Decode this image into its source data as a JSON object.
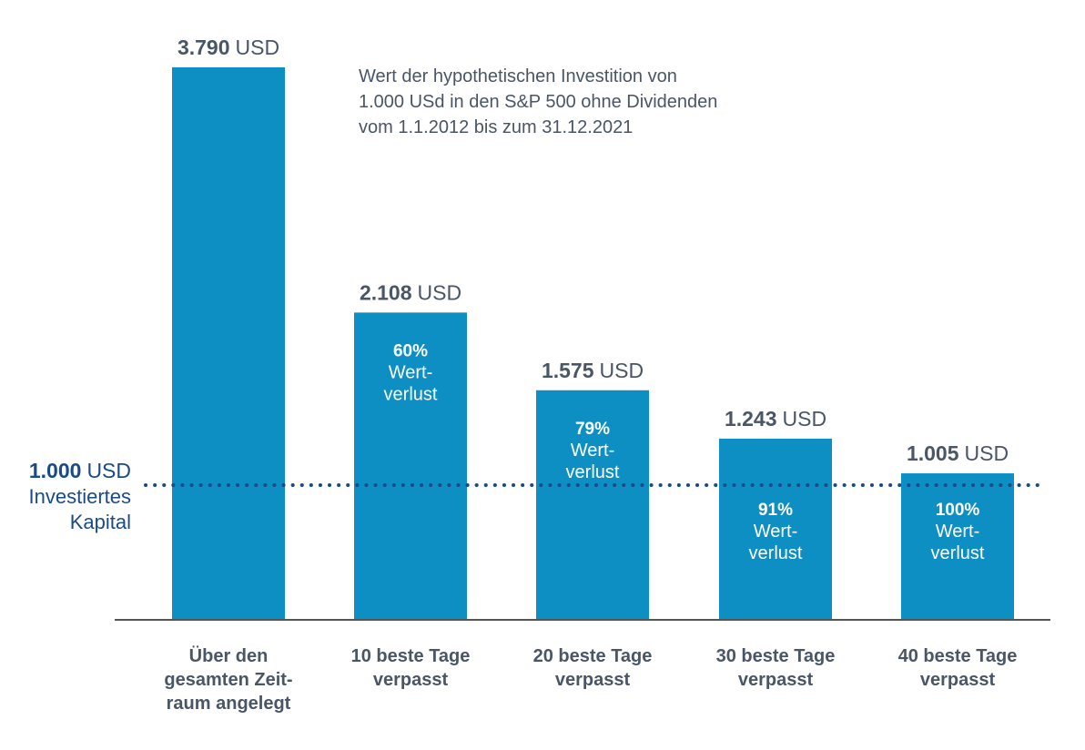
{
  "chart_data": {
    "type": "bar",
    "subtitle_lines": [
      "Wert der hypothetischen Investition von",
      "1.000 USd in den S&P 500 ohne Dividenden",
      "vom 1.1.2012 bis zum 31.12.2021"
    ],
    "unit": "USD",
    "categories": [
      [
        "Über den",
        "gesamten Zeit-",
        "raum angelegt"
      ],
      [
        "10 beste Tage",
        "verpasst"
      ],
      [
        "20 beste Tage",
        "verpasst"
      ],
      [
        "30 beste Tage",
        "verpasst"
      ],
      [
        "40 beste Tage",
        "verpasst"
      ]
    ],
    "values": [
      3790,
      2108,
      1575,
      1243,
      1005
    ],
    "value_labels": [
      "3.790",
      "2.108",
      "1.575",
      "1.243",
      "1.005"
    ],
    "loss_labels": [
      null,
      {
        "percent": "60%",
        "text": [
          "Wert-",
          "verlust"
        ]
      },
      {
        "percent": "79%",
        "text": [
          "Wert-",
          "verlust"
        ]
      },
      {
        "percent": "91%",
        "text": [
          "Wert-",
          "verlust"
        ]
      },
      {
        "percent": "100%",
        "text": [
          "Wert-",
          "verlust"
        ]
      }
    ],
    "reference_line": {
      "value": 1000,
      "value_label": "1.000",
      "unit": "USD",
      "label_lines": [
        "Investiertes",
        "Kapital"
      ]
    },
    "ylim": [
      0,
      3790
    ],
    "grid": false,
    "colors": {
      "bar": "#0e8fc4",
      "reference": "#1a4a8a",
      "text_dark": "#4a5566",
      "text_light": "#ffffff",
      "axis": "#555555"
    }
  }
}
